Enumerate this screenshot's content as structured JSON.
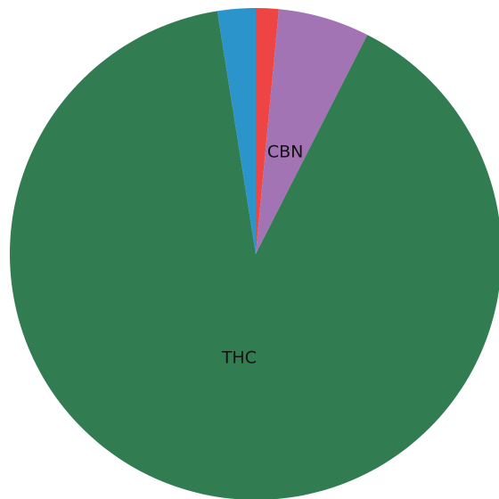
{
  "chart_data": {
    "type": "pie",
    "start_angle_deg": 90,
    "direction": "clockwise",
    "slices": [
      {
        "value": 1.5,
        "label": "",
        "color": "#ef4444"
      },
      {
        "value": 6.0,
        "label": "CBN",
        "color": "#a374b3"
      },
      {
        "value": 90.0,
        "label": "THC",
        "color": "#317c51"
      },
      {
        "value": 2.5,
        "label": "",
        "color": "#2a94cb"
      }
    ]
  }
}
